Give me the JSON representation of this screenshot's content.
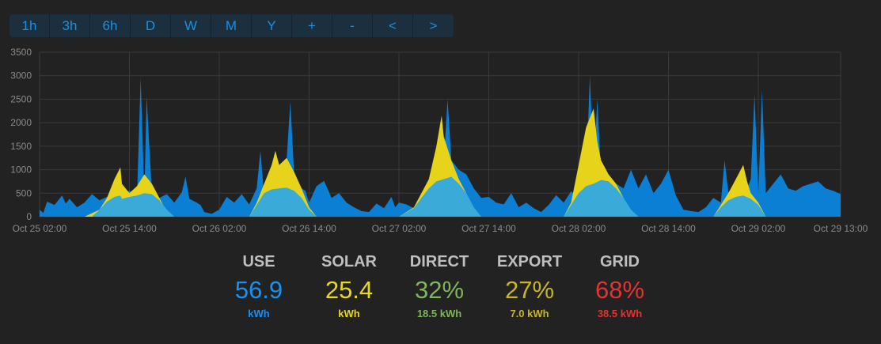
{
  "toolbar": {
    "buttons": [
      "1h",
      "3h",
      "6h",
      "D",
      "W",
      "M",
      "Y",
      "+",
      "-",
      "<",
      ">"
    ]
  },
  "colors": {
    "use": "#0b7fd4",
    "solar_direct": "#3aaad8",
    "solar_export": "#e6d31a",
    "grid_lines": "#3a3a3a",
    "axis_text": "#8a8a8a",
    "use_stat": "#1a90f0",
    "solar_stat": "#e8d723",
    "direct_stat": "#7fb65a",
    "export_stat": "#c8b52a",
    "grid_stat": "#e03434"
  },
  "chart_data": {
    "type": "area",
    "x_ticks": [
      "Oct 25 02:00",
      "Oct 25 14:00",
      "Oct 26 02:00",
      "Oct 26 14:00",
      "Oct 27 02:00",
      "Oct 27 14:00",
      "Oct 28 02:00",
      "Oct 28 14:00",
      "Oct 29 02:00",
      "Oct 29 13:00"
    ],
    "y_ticks": [
      0,
      500,
      1000,
      1500,
      2000,
      2500,
      3000,
      3500
    ],
    "ylim": [
      0,
      3500
    ],
    "grid": true,
    "series": [
      {
        "name": "USE",
        "values": [
          [
            0,
            150
          ],
          [
            0.5,
            80
          ],
          [
            1,
            320
          ],
          [
            2,
            250
          ],
          [
            3,
            450
          ],
          [
            3.5,
            280
          ],
          [
            4,
            380
          ],
          [
            5,
            200
          ],
          [
            6,
            300
          ],
          [
            7,
            480
          ],
          [
            8,
            350
          ],
          [
            9,
            420
          ],
          [
            10,
            520
          ],
          [
            10.8,
            900
          ],
          [
            11,
            400
          ],
          [
            12,
            560
          ],
          [
            13,
            360
          ],
          [
            13.5,
            2950
          ],
          [
            14,
            420
          ],
          [
            14.3,
            2550
          ],
          [
            15,
            500
          ],
          [
            16,
            400
          ],
          [
            17,
            480
          ],
          [
            18,
            300
          ],
          [
            19,
            520
          ],
          [
            19.5,
            850
          ],
          [
            20,
            380
          ],
          [
            21,
            300
          ],
          [
            21.5,
            250
          ],
          [
            22,
            100
          ],
          [
            23,
            60
          ],
          [
            24,
            150
          ],
          [
            25,
            420
          ],
          [
            26,
            300
          ],
          [
            27,
            480
          ],
          [
            28,
            260
          ],
          [
            29,
            600
          ],
          [
            29.5,
            1400
          ],
          [
            30,
            450
          ],
          [
            31,
            700
          ],
          [
            32,
            900
          ],
          [
            33,
            1200
          ],
          [
            33.5,
            2450
          ],
          [
            34,
            900
          ],
          [
            35,
            600
          ],
          [
            35.5,
            550
          ],
          [
            36,
            300
          ],
          [
            37,
            650
          ],
          [
            38,
            760
          ],
          [
            39,
            400
          ],
          [
            40,
            500
          ],
          [
            41,
            300
          ],
          [
            42,
            200
          ],
          [
            43,
            120
          ],
          [
            44,
            100
          ],
          [
            45,
            280
          ],
          [
            46,
            180
          ],
          [
            47,
            420
          ],
          [
            47.5,
            200
          ],
          [
            48,
            300
          ],
          [
            49,
            260
          ],
          [
            50,
            180
          ],
          [
            51,
            320
          ],
          [
            52,
            400
          ],
          [
            53,
            900
          ],
          [
            54,
            1200
          ],
          [
            54.5,
            2500
          ],
          [
            55,
            1200
          ],
          [
            56,
            1000
          ],
          [
            57,
            900
          ],
          [
            58,
            600
          ],
          [
            59,
            400
          ],
          [
            60,
            420
          ],
          [
            61,
            300
          ],
          [
            62,
            260
          ],
          [
            63,
            500
          ],
          [
            64,
            200
          ],
          [
            65,
            300
          ],
          [
            66,
            180
          ],
          [
            67,
            100
          ],
          [
            68,
            250
          ],
          [
            69,
            460
          ],
          [
            70,
            300
          ],
          [
            71,
            540
          ],
          [
            72,
            400
          ],
          [
            73,
            800
          ],
          [
            73.5,
            3000
          ],
          [
            74,
            1000
          ],
          [
            74.5,
            2500
          ],
          [
            75,
            900
          ],
          [
            76,
            800
          ],
          [
            77,
            700
          ],
          [
            78,
            600
          ],
          [
            79,
            1000
          ],
          [
            80,
            600
          ],
          [
            81,
            900
          ],
          [
            82,
            500
          ],
          [
            83,
            700
          ],
          [
            84,
            1000
          ],
          [
            85,
            450
          ],
          [
            86,
            150
          ],
          [
            87,
            120
          ],
          [
            88,
            100
          ],
          [
            89,
            200
          ],
          [
            90,
            400
          ],
          [
            91,
            300
          ],
          [
            91.5,
            1200
          ],
          [
            92,
            520
          ],
          [
            93,
            600
          ],
          [
            94,
            400
          ],
          [
            95,
            800
          ],
          [
            95.5,
            2600
          ],
          [
            96,
            500
          ],
          [
            96.5,
            2700
          ],
          [
            97,
            500
          ],
          [
            98,
            700
          ],
          [
            99,
            900
          ],
          [
            100,
            600
          ],
          [
            101,
            550
          ],
          [
            102,
            650
          ],
          [
            103,
            700
          ],
          [
            104,
            750
          ],
          [
            105,
            600
          ],
          [
            106,
            550
          ],
          [
            107,
            480
          ]
        ]
      },
      {
        "name": "SOLAR",
        "values": [
          [
            0,
            0
          ],
          [
            6,
            0
          ],
          [
            8,
            150
          ],
          [
            9,
            400
          ],
          [
            10,
            800
          ],
          [
            10.8,
            1050
          ],
          [
            11,
            700
          ],
          [
            12,
            500
          ],
          [
            13,
            650
          ],
          [
            14,
            900
          ],
          [
            15,
            700
          ],
          [
            16,
            400
          ],
          [
            17,
            100
          ],
          [
            18,
            0
          ],
          [
            28,
            0
          ],
          [
            29,
            300
          ],
          [
            30,
            700
          ],
          [
            31,
            1100
          ],
          [
            31.5,
            1400
          ],
          [
            32,
            1100
          ],
          [
            33,
            1250
          ],
          [
            34,
            950
          ],
          [
            35,
            600
          ],
          [
            36,
            200
          ],
          [
            37,
            0
          ],
          [
            48,
            0
          ],
          [
            50,
            200
          ],
          [
            52,
            800
          ],
          [
            53,
            1500
          ],
          [
            53.7,
            2150
          ],
          [
            54,
            1700
          ],
          [
            55,
            1200
          ],
          [
            56,
            800
          ],
          [
            57,
            500
          ],
          [
            58,
            100
          ],
          [
            59,
            0
          ],
          [
            70,
            0
          ],
          [
            71,
            300
          ],
          [
            72,
            1100
          ],
          [
            73,
            1900
          ],
          [
            74,
            2300
          ],
          [
            74.5,
            1600
          ],
          [
            75,
            1200
          ],
          [
            76,
            900
          ],
          [
            77,
            700
          ],
          [
            78,
            400
          ],
          [
            79,
            100
          ],
          [
            80,
            0
          ],
          [
            90,
            0
          ],
          [
            91,
            250
          ],
          [
            92,
            500
          ],
          [
            93,
            800
          ],
          [
            94,
            1100
          ],
          [
            94.5,
            750
          ],
          [
            95,
            500
          ],
          [
            96,
            300
          ],
          [
            97,
            0
          ],
          [
            107,
            0
          ]
        ]
      },
      {
        "name": "DIRECT",
        "values": [
          [
            0,
            0
          ],
          [
            7,
            0
          ],
          [
            8,
            150
          ],
          [
            9,
            320
          ],
          [
            10,
            420
          ],
          [
            10.8,
            450
          ],
          [
            11,
            380
          ],
          [
            12,
            420
          ],
          [
            13,
            450
          ],
          [
            14,
            500
          ],
          [
            15,
            480
          ],
          [
            16,
            350
          ],
          [
            17,
            150
          ],
          [
            18,
            0
          ],
          [
            28,
            0
          ],
          [
            29,
            250
          ],
          [
            30,
            500
          ],
          [
            31,
            580
          ],
          [
            32,
            600
          ],
          [
            33,
            620
          ],
          [
            34,
            550
          ],
          [
            35,
            400
          ],
          [
            36,
            150
          ],
          [
            37,
            0
          ],
          [
            48,
            0
          ],
          [
            50,
            180
          ],
          [
            51,
            400
          ],
          [
            52,
            600
          ],
          [
            53,
            750
          ],
          [
            54,
            800
          ],
          [
            55,
            850
          ],
          [
            56,
            700
          ],
          [
            57,
            500
          ],
          [
            58,
            200
          ],
          [
            59,
            0
          ],
          [
            70,
            0
          ],
          [
            71,
            250
          ],
          [
            72,
            500
          ],
          [
            73,
            650
          ],
          [
            74,
            700
          ],
          [
            75,
            780
          ],
          [
            76,
            750
          ],
          [
            77,
            600
          ],
          [
            78,
            400
          ],
          [
            79,
            150
          ],
          [
            80,
            0
          ],
          [
            90,
            0
          ],
          [
            91,
            200
          ],
          [
            92,
            350
          ],
          [
            93,
            420
          ],
          [
            94,
            450
          ],
          [
            95,
            380
          ],
          [
            96,
            250
          ],
          [
            97,
            0
          ],
          [
            107,
            0
          ]
        ]
      }
    ]
  },
  "stats": [
    {
      "title": "USE",
      "value": "56.9",
      "unit": "kWh",
      "color": "#1a90f0"
    },
    {
      "title": "SOLAR",
      "value": "25.4",
      "unit": "kWh",
      "color": "#e8d723"
    },
    {
      "title": "DIRECT",
      "value": "32%",
      "unit": "18.5 kWh",
      "color": "#7fb65a"
    },
    {
      "title": "EXPORT",
      "value": "27%",
      "unit": "7.0 kWh",
      "color": "#c8b52a"
    },
    {
      "title": "GRID",
      "value": "68%",
      "unit": "38.5 kWh",
      "color": "#e03434"
    }
  ]
}
